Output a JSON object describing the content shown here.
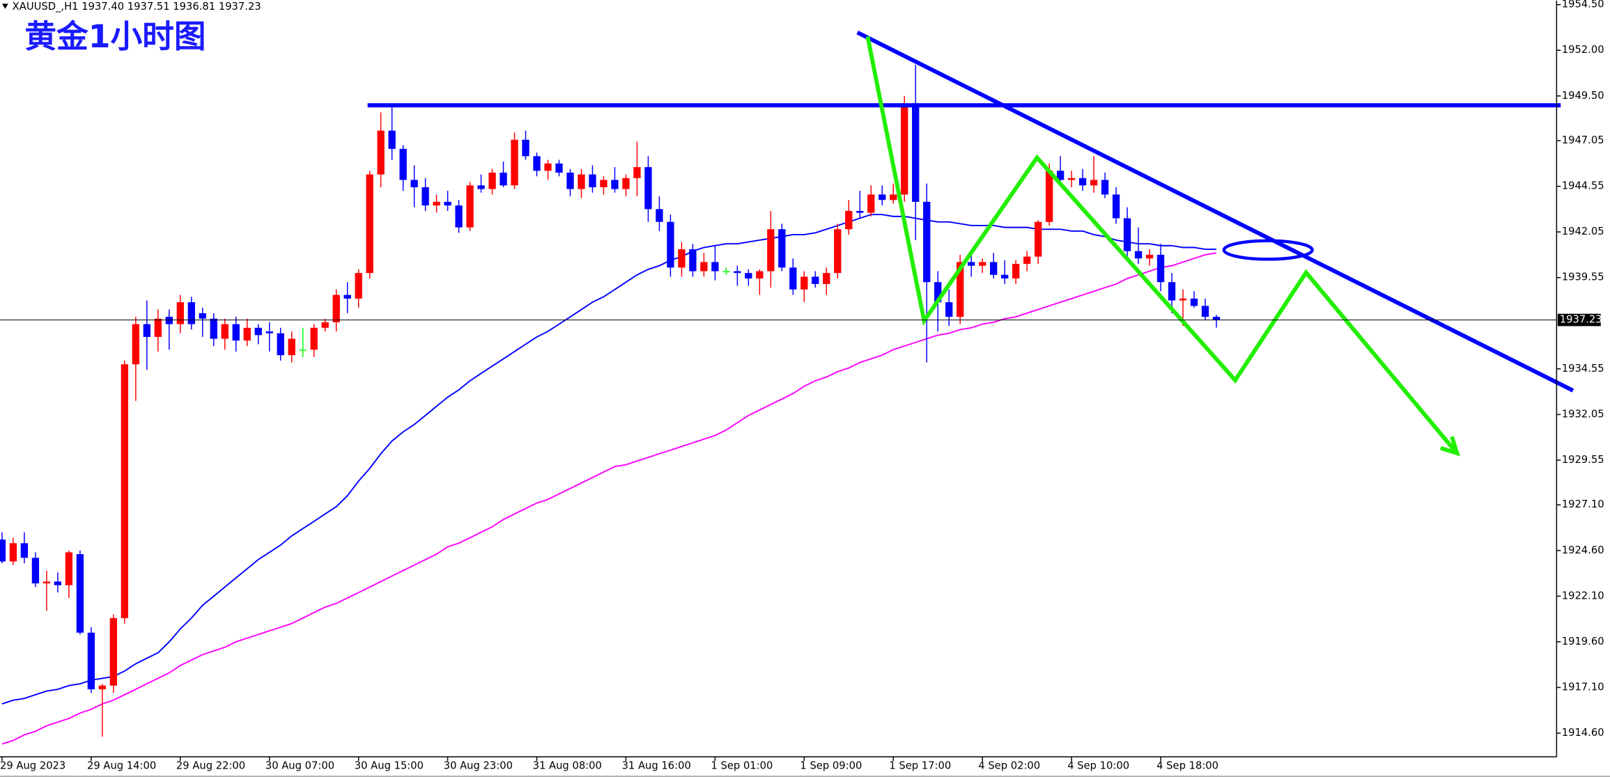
{
  "chart_data": {
    "type": "candlestick",
    "title": "黄金1小时图",
    "header": "XAUUSD_,H1  1937.40 1937.51 1936.81 1937.23",
    "up_color": "#ff0000",
    "down_color": "#0000ff",
    "doji_color": "#00ff00",
    "ylim": [
      1913.3,
      1954.72
    ],
    "yticks": [
      {
        "value": 1954.5,
        "label": "1954.50"
      },
      {
        "value": 1952,
        "label": "1952.00"
      },
      {
        "value": 1949.5,
        "label": "1949.50"
      },
      1947.05,
      1944.55,
      1942.05,
      1939.55,
      1934.55,
      1932.05,
      1929.55,
      {
        "value": 1927.1,
        "label": "1927.10"
      },
      {
        "value": 1924.6,
        "label": "1924.60"
      },
      {
        "value": 1922.1,
        "label": "1922.10"
      },
      {
        "value": 1919.6,
        "label": "1919.60"
      },
      {
        "value": 1917.1,
        "label": "1917.10"
      },
      {
        "value": 1914.6,
        "label": "1914.60"
      }
    ],
    "current_price": 1937.23,
    "categories": [
      "29 Aug 2023",
      null,
      null,
      null,
      null,
      null,
      null,
      null,
      "29 Aug 14:00",
      null,
      null,
      null,
      null,
      null,
      null,
      null,
      "29 Aug 22:00",
      null,
      null,
      null,
      null,
      null,
      null,
      null,
      "30 Aug 07:00",
      null,
      null,
      null,
      null,
      null,
      null,
      null,
      "30 Aug 15:00",
      null,
      null,
      null,
      null,
      null,
      null,
      null,
      "30 Aug 23:00",
      null,
      null,
      null,
      null,
      null,
      null,
      null,
      "31 Aug 08:00",
      null,
      null,
      null,
      null,
      null,
      null,
      null,
      "31 Aug 16:00",
      null,
      null,
      null,
      null,
      null,
      null,
      null,
      "1 Sep 01:00",
      null,
      null,
      null,
      null,
      null,
      null,
      null,
      "1 Sep 09:00",
      null,
      null,
      null,
      null,
      null,
      null,
      null,
      "1 Sep 17:00",
      null,
      null,
      null,
      null,
      null,
      null,
      null,
      "4 Sep 02:00",
      null,
      null,
      null,
      null,
      null,
      null,
      null,
      "4 Sep 10:00",
      null,
      null,
      null,
      null,
      null,
      null,
      null,
      "4 Sep 18:00",
      null,
      null,
      null,
      null,
      null
    ],
    "open": [
      1925.2,
      1924.0,
      1925.0,
      1924.2,
      1922.8,
      1922.9,
      1922.7,
      1924.4,
      1920.1,
      1917.0,
      1917.2,
      1920.9,
      1934.8,
      1937.0,
      1936.3,
      1937.4,
      1937.0,
      1938.2,
      1937.6,
      1937.3,
      1936.2,
      1937.0,
      1936.1,
      1936.8,
      1936.6,
      1936.5,
      1935.3,
      1935.6,
      1935.6,
      1936.8,
      1937.1,
      1938.6,
      1938.4,
      1939.8,
      1945.2,
      1947.6,
      1946.6,
      1944.9,
      1944.5,
      1943.5,
      1943.7,
      1943.5,
      1942.3,
      1944.6,
      1944.4,
      1945.3,
      1944.6,
      1947.1,
      1946.2,
      1945.4,
      1945.8,
      1945.3,
      1944.4,
      1945.2,
      1944.5,
      1944.9,
      1944.4,
      1945.0,
      1945.6,
      1943.3,
      1942.6,
      1940.1,
      1941.1,
      1939.9,
      1940.4,
      1939.9,
      1939.9,
      1939.8,
      1939.5,
      1939.9,
      1942.2,
      1940.1,
      1938.9,
      1939.6,
      1939.2,
      1939.8,
      1942.2,
      1943.2,
      1943.1,
      1944.1,
      1943.8,
      1944.1,
      1949.1,
      1943.7,
      1939.3,
      1938.2,
      1937.4,
      1940.4,
      1940.2,
      1940.4,
      1939.7,
      1939.5,
      1940.3,
      1940.7,
      1942.6,
      1945.4,
      1944.9,
      1945.0,
      1944.6,
      1944.9,
      1944.1,
      1942.8,
      1941.0,
      1940.6,
      1940.8,
      1939.3,
      1938.3,
      1938.4,
      1938.0,
      1937.4
    ],
    "high": [
      1925.6,
      1925.3,
      1925.6,
      1924.5,
      1923.5,
      1923.4,
      1924.6,
      1924.6,
      1920.4,
      1917.3,
      1921.1,
      1935.0,
      1937.4,
      1938.3,
      1937.8,
      1937.8,
      1938.6,
      1938.5,
      1937.9,
      1937.6,
      1937.3,
      1937.4,
      1937.3,
      1937.0,
      1937.1,
      1936.8,
      1936.6,
      1936.8,
      1937.0,
      1937.3,
      1938.9,
      1939.3,
      1940.0,
      1945.4,
      1948.6,
      1948.9,
      1946.8,
      1945.7,
      1945.0,
      1944.1,
      1944.3,
      1943.8,
      1944.8,
      1945.2,
      1945.5,
      1945.9,
      1947.5,
      1947.6,
      1946.4,
      1946.0,
      1946.0,
      1945.5,
      1945.5,
      1945.7,
      1945.1,
      1945.6,
      1945.2,
      1947.0,
      1946.2,
      1944.0,
      1943.0,
      1941.5,
      1941.4,
      1940.9,
      1941.3,
      1940.1,
      1940.2,
      1940.0,
      1940.0,
      1943.2,
      1942.5,
      1940.6,
      1939.9,
      1939.9,
      1940.1,
      1942.5,
      1943.8,
      1944.3,
      1944.6,
      1944.6,
      1944.7,
      1949.5,
      1951.2,
      1944.7,
      1939.9,
      1938.9,
      1940.8,
      1940.8,
      1940.6,
      1940.9,
      1940.5,
      1940.5,
      1941.0,
      1942.7,
      1945.8,
      1946.2,
      1945.4,
      1945.5,
      1946.2,
      1945.3,
      1944.5,
      1943.4,
      1942.3,
      1941.1,
      1941.4,
      1939.8,
      1938.9,
      1938.8,
      1938.4,
      1937.51
    ],
    "low": [
      1923.9,
      1923.8,
      1923.9,
      1922.6,
      1921.3,
      1922.3,
      1922.0,
      1920.0,
      1916.8,
      1914.4,
      1916.8,
      1920.6,
      1932.8,
      1934.5,
      1935.5,
      1935.6,
      1936.5,
      1936.7,
      1936.3,
      1935.8,
      1935.6,
      1935.5,
      1935.8,
      1935.9,
      1935.5,
      1935.0,
      1934.9,
      1935.2,
      1935.2,
      1936.6,
      1936.6,
      1937.6,
      1937.9,
      1939.5,
      1944.5,
      1946.0,
      1944.3,
      1943.4,
      1943.2,
      1943.1,
      1943.2,
      1942.0,
      1942.1,
      1944.2,
      1944.1,
      1944.5,
      1944.4,
      1946.0,
      1945.1,
      1944.9,
      1945.1,
      1944.0,
      1943.9,
      1944.2,
      1944.1,
      1944.2,
      1944.0,
      1944.0,
      1942.6,
      1942.1,
      1939.6,
      1939.6,
      1939.6,
      1939.6,
      1939.4,
      1939.7,
      1939.1,
      1939.1,
      1938.6,
      1939.0,
      1939.9,
      1938.6,
      1938.2,
      1939.0,
      1938.6,
      1939.5,
      1941.9,
      1942.8,
      1942.9,
      1943.5,
      1943.6,
      1943.7,
      1941.6,
      1934.9,
      1936.6,
      1936.9,
      1937.0,
      1939.6,
      1939.8,
      1939.5,
      1939.2,
      1939.2,
      1939.9,
      1940.3,
      1942.4,
      1944.7,
      1944.5,
      1944.3,
      1944.2,
      1943.9,
      1942.5,
      1940.6,
      1940.3,
      1940.2,
      1938.8,
      1937.6,
      1936.9,
      1937.9,
      1937.2,
      1936.81
    ],
    "close": [
      1924.0,
      1925.0,
      1924.2,
      1922.8,
      1922.9,
      1922.7,
      1924.5,
      1920.1,
      1917.0,
      1917.2,
      1920.9,
      1934.8,
      1937.0,
      1936.3,
      1937.3,
      1937.0,
      1938.2,
      1937.0,
      1937.3,
      1936.2,
      1937.0,
      1936.1,
      1936.8,
      1936.4,
      1936.5,
      1935.3,
      1936.2,
      1935.6,
      1936.8,
      1937.1,
      1938.6,
      1938.4,
      1939.8,
      1945.2,
      1947.6,
      1946.6,
      1944.9,
      1944.5,
      1943.5,
      1943.7,
      1943.5,
      1942.3,
      1944.6,
      1944.4,
      1945.3,
      1944.6,
      1947.1,
      1946.2,
      1945.4,
      1945.8,
      1945.3,
      1944.4,
      1945.2,
      1944.5,
      1944.9,
      1944.4,
      1945.0,
      1945.6,
      1943.3,
      1942.6,
      1940.1,
      1941.1,
      1939.9,
      1940.4,
      1939.9,
      1939.9,
      1939.8,
      1939.5,
      1939.9,
      1942.2,
      1940.1,
      1938.9,
      1939.6,
      1939.2,
      1939.8,
      1942.2,
      1943.2,
      1943.1,
      1944.1,
      1943.8,
      1944.1,
      1949.1,
      1943.7,
      1939.3,
      1938.2,
      1937.4,
      1940.4,
      1940.2,
      1940.4,
      1939.7,
      1939.5,
      1940.3,
      1940.7,
      1942.6,
      1945.4,
      1944.9,
      1945.0,
      1944.6,
      1944.9,
      1944.1,
      1942.8,
      1941.0,
      1940.6,
      1940.8,
      1939.3,
      1938.3,
      1938.4,
      1938.0,
      1937.4,
      1937.23
    ],
    "moving_averages": [
      {
        "color": "#0000ff",
        "values": [
          1916.2,
          1916.4,
          1916.5,
          1916.7,
          1916.9,
          1917.0,
          1917.2,
          1917.3,
          1917.5,
          1917.6,
          1917.7,
          1918.0,
          1918.4,
          1918.7,
          1919.0,
          1919.6,
          1920.3,
          1920.9,
          1921.6,
          1922.1,
          1922.6,
          1923.1,
          1923.6,
          1924.1,
          1924.5,
          1924.9,
          1925.4,
          1925.8,
          1926.2,
          1926.6,
          1927.0,
          1927.6,
          1928.4,
          1929.1,
          1929.9,
          1930.6,
          1931.1,
          1931.5,
          1932.0,
          1932.5,
          1933.0,
          1933.4,
          1933.9,
          1934.3,
          1934.7,
          1935.1,
          1935.5,
          1935.9,
          1936.3,
          1936.6,
          1937.0,
          1937.4,
          1937.8,
          1938.2,
          1938.5,
          1938.9,
          1939.3,
          1939.7,
          1940.0,
          1940.2,
          1940.5,
          1940.7,
          1941.0,
          1941.2,
          1941.3,
          1941.4,
          1941.4,
          1941.5,
          1941.6,
          1941.7,
          1941.8,
          1941.9,
          1941.9,
          1942.0,
          1942.2,
          1942.4,
          1942.6,
          1942.8,
          1943.0,
          1943.0,
          1942.9,
          1942.9,
          1942.8,
          1942.7,
          1942.6,
          1942.6,
          1942.5,
          1942.4,
          1942.4,
          1942.4,
          1942.3,
          1942.3,
          1942.3,
          1942.2,
          1942.2,
          1942.2,
          1942.1,
          1942.1,
          1941.9,
          1941.8,
          1941.6,
          1941.5,
          1941.4,
          1941.4,
          1941.3,
          1941.3,
          1941.2,
          1941.2,
          1941.1,
          1941.1
        ]
      },
      {
        "color": "#ff00ff",
        "values": [
          1914.0,
          1914.2,
          1914.5,
          1914.7,
          1915.0,
          1915.2,
          1915.4,
          1915.7,
          1915.9,
          1916.2,
          1916.4,
          1916.7,
          1917.0,
          1917.3,
          1917.6,
          1917.9,
          1918.3,
          1918.6,
          1918.9,
          1919.1,
          1919.3,
          1919.6,
          1919.8,
          1920.0,
          1920.2,
          1920.4,
          1920.6,
          1920.9,
          1921.2,
          1921.5,
          1921.7,
          1922.0,
          1922.3,
          1922.6,
          1922.9,
          1923.2,
          1923.5,
          1923.8,
          1924.1,
          1924.4,
          1924.8,
          1925.0,
          1925.3,
          1925.6,
          1925.9,
          1926.3,
          1926.6,
          1926.9,
          1927.2,
          1927.4,
          1927.7,
          1928.0,
          1928.3,
          1928.6,
          1928.9,
          1929.2,
          1929.3,
          1929.5,
          1929.7,
          1929.9,
          1930.1,
          1930.3,
          1930.5,
          1930.7,
          1930.9,
          1931.2,
          1931.6,
          1932.0,
          1932.3,
          1932.6,
          1932.9,
          1933.2,
          1933.6,
          1933.9,
          1934.1,
          1934.4,
          1934.6,
          1934.9,
          1935.1,
          1935.3,
          1935.6,
          1935.8,
          1936.0,
          1936.2,
          1936.4,
          1936.5,
          1936.7,
          1936.8,
          1937.0,
          1937.1,
          1937.3,
          1937.4,
          1937.6,
          1937.8,
          1938.0,
          1938.2,
          1938.4,
          1938.6,
          1938.8,
          1939.0,
          1939.2,
          1939.5,
          1939.7,
          1939.9,
          1940.1,
          1940.2,
          1940.4,
          1940.6,
          1940.8,
          1940.9
        ]
      }
    ]
  }
}
